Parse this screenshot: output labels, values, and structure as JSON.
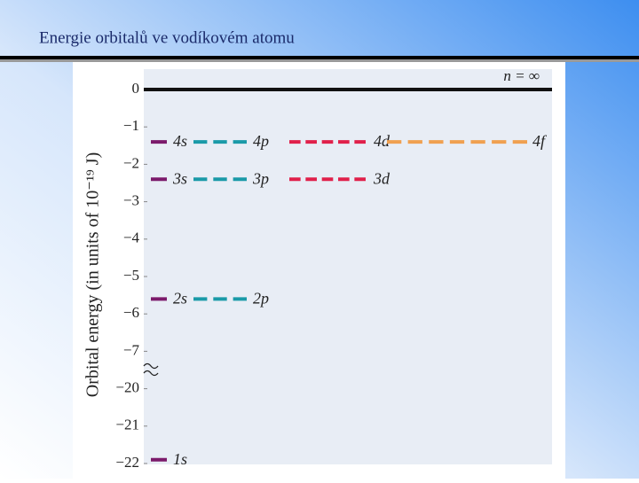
{
  "chart_data": {
    "type": "energy-levels",
    "title": "Energie orbitalů ve vodíkovém atomu",
    "y_label": "Orbital energy (in units of 10⁻¹⁹ J)",
    "ylim": [
      -22,
      0
    ],
    "yticks": [
      0,
      {
        "value": -1,
        "label": "−1"
      },
      {
        "value": -2,
        "label": "−2"
      },
      {
        "value": -3,
        "label": "−3"
      },
      {
        "value": -4,
        "label": "−4"
      },
      {
        "value": -5,
        "label": "−5"
      },
      {
        "value": -6,
        "label": "−6"
      },
      {
        "value": -7,
        "label": "−7"
      },
      {
        "value": -20,
        "label": "−20"
      },
      {
        "value": -21,
        "label": "−21"
      },
      {
        "value": -22,
        "label": "−22"
      }
    ],
    "limit": {
      "label": "n = ∞",
      "value": 0,
      "color": "#111111"
    },
    "levels": [
      {
        "label": "4s",
        "value": -1.4,
        "color": "#7b1a6b"
      },
      {
        "label": "4p",
        "value": -1.4,
        "color": "#1a9aa8"
      },
      {
        "label": "4d",
        "value": -1.4,
        "color": "#e0204a"
      },
      {
        "label": "4f",
        "value": -1.4,
        "color": "#f0a050"
      },
      {
        "label": "3s",
        "value": -2.4,
        "color": "#7b1a6b"
      },
      {
        "label": "3p",
        "value": -2.4,
        "color": "#1a9aa8"
      },
      {
        "label": "3d",
        "value": -2.4,
        "color": "#e0204a"
      },
      {
        "label": "2s",
        "value": -5.6,
        "color": "#7b1a6b"
      },
      {
        "label": "2p",
        "value": -5.6,
        "color": "#1a9aa8"
      },
      {
        "label": "1s",
        "value": -21.9,
        "color": "#7b1a6b"
      }
    ]
  }
}
